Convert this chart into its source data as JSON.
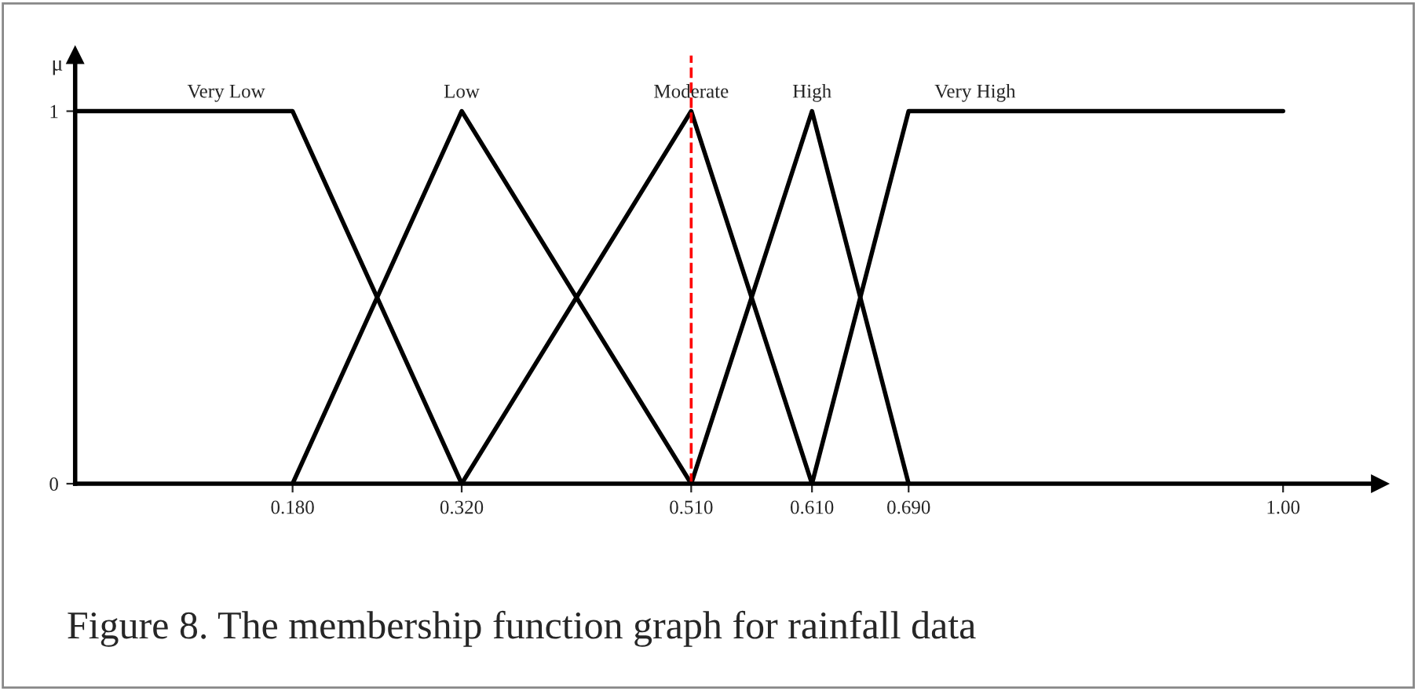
{
  "chart_data": {
    "type": "line",
    "ylabel": "μ",
    "series": [
      {
        "name": "Very Low",
        "color": "#000000",
        "x": [
          0,
          0.18,
          0.32
        ],
        "values": [
          1,
          1,
          0
        ]
      },
      {
        "name": "Low",
        "color": "#000000",
        "x": [
          0.18,
          0.32,
          0.51
        ],
        "values": [
          0,
          1,
          0
        ]
      },
      {
        "name": "Moderate",
        "color": "#000000",
        "x": [
          0.32,
          0.51,
          0.61
        ],
        "values": [
          0,
          1,
          0
        ]
      },
      {
        "name": "High",
        "color": "#000000",
        "x": [
          0.51,
          0.61,
          0.69
        ],
        "values": [
          0,
          1,
          0
        ]
      },
      {
        "name": "Very High",
        "color": "#000000",
        "x": [
          0.61,
          0.69,
          1.0
        ],
        "values": [
          0,
          1,
          1
        ]
      }
    ],
    "xlim": [
      0,
      1.08
    ],
    "ylim": [
      0,
      1.15
    ],
    "xticks": [
      {
        "value": 0.18,
        "label": "0.180"
      },
      {
        "value": 0.32,
        "label": "0.320"
      },
      {
        "value": 0.51,
        "label": "0.510"
      },
      {
        "value": 0.61,
        "label": "0.610"
      },
      {
        "value": 0.69,
        "label": "0.690"
      },
      {
        "value": 1.0,
        "label": "1.00"
      }
    ],
    "yticks": [
      0,
      1
    ],
    "ref_lines": [
      {
        "axis": "x",
        "value": 0.51,
        "color": "#ff0000",
        "line_style": "dashed"
      }
    ],
    "annotations": [
      "Figure 8. The membership function graph for rainfall data"
    ],
    "grid": false,
    "legend": false,
    "marker": "none",
    "line_style": "solid"
  }
}
